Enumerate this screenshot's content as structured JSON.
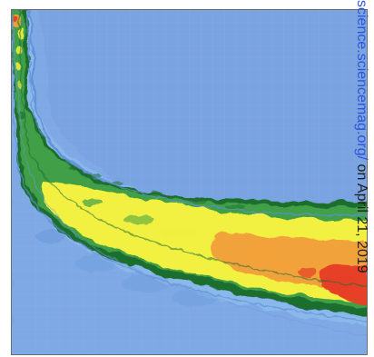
{
  "figure": {
    "colors": {
      "background": "#7aa3e2",
      "grid": "#8bb2e8",
      "outer_contour": "#5f8fd8",
      "light_blue": "#8bb8ea",
      "green": "#3f9f46",
      "dark_green": "#1d6e2f",
      "yellow": "#f2f03f",
      "orange": "#f2a23a",
      "red": "#e63f25"
    }
  },
  "watermark": {
    "link_text": "science.sciencemag.org/",
    "rest_text": " on April 21, 2019"
  }
}
